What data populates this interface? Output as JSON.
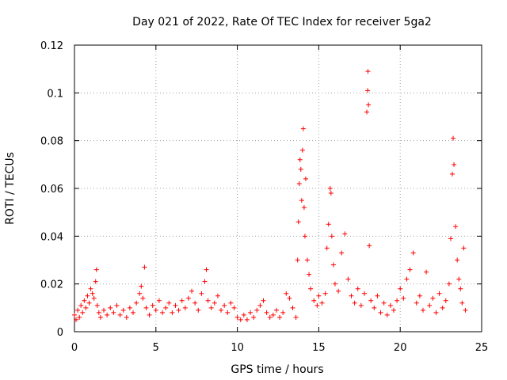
{
  "chart_data": {
    "type": "scatter",
    "title": "Day 021 of 2022, Rate Of TEC Index for receiver 5ga2",
    "xlabel": "GPS time / hours",
    "ylabel": "ROTI / TECUs",
    "xlim": [
      0,
      25
    ],
    "ylim": [
      0,
      0.12
    ],
    "xticks": [
      0,
      5,
      10,
      15,
      20,
      25
    ],
    "xtick_labels": [
      "0",
      "5",
      "10",
      "15",
      "20",
      "25"
    ],
    "yticks": [
      0,
      0.02,
      0.04,
      0.06,
      0.08,
      0.1,
      0.12
    ],
    "ytick_labels": [
      "0",
      "0.02",
      "0.04",
      "0.06",
      "0.08",
      "0.1",
      "0.12"
    ],
    "grid": true,
    "marker": "+",
    "color": "#ff0000",
    "series": [
      {
        "name": "ROTI",
        "points": [
          [
            0.0,
            0.007
          ],
          [
            0.1,
            0.005
          ],
          [
            0.2,
            0.009
          ],
          [
            0.3,
            0.006
          ],
          [
            0.4,
            0.011
          ],
          [
            0.5,
            0.008
          ],
          [
            0.6,
            0.013
          ],
          [
            0.7,
            0.01
          ],
          [
            0.8,
            0.015
          ],
          [
            0.9,
            0.012
          ],
          [
            1.0,
            0.018
          ],
          [
            1.1,
            0.016
          ],
          [
            1.2,
            0.014
          ],
          [
            1.3,
            0.021
          ],
          [
            1.35,
            0.026
          ],
          [
            1.4,
            0.011
          ],
          [
            1.5,
            0.008
          ],
          [
            1.6,
            0.006
          ],
          [
            1.8,
            0.009
          ],
          [
            2.0,
            0.007
          ],
          [
            2.2,
            0.01
          ],
          [
            2.4,
            0.008
          ],
          [
            2.6,
            0.011
          ],
          [
            2.8,
            0.007
          ],
          [
            3.0,
            0.009
          ],
          [
            3.2,
            0.006
          ],
          [
            3.4,
            0.01
          ],
          [
            3.6,
            0.008
          ],
          [
            3.8,
            0.012
          ],
          [
            4.0,
            0.016
          ],
          [
            4.1,
            0.019
          ],
          [
            4.2,
            0.014
          ],
          [
            4.3,
            0.027
          ],
          [
            4.4,
            0.01
          ],
          [
            4.6,
            0.007
          ],
          [
            4.8,
            0.011
          ],
          [
            5.0,
            0.009
          ],
          [
            5.2,
            0.013
          ],
          [
            5.4,
            0.008
          ],
          [
            5.6,
            0.01
          ],
          [
            5.8,
            0.012
          ],
          [
            6.0,
            0.008
          ],
          [
            6.2,
            0.011
          ],
          [
            6.4,
            0.009
          ],
          [
            6.6,
            0.013
          ],
          [
            6.8,
            0.01
          ],
          [
            7.0,
            0.014
          ],
          [
            7.2,
            0.017
          ],
          [
            7.4,
            0.012
          ],
          [
            7.6,
            0.009
          ],
          [
            7.8,
            0.016
          ],
          [
            8.0,
            0.021
          ],
          [
            8.1,
            0.026
          ],
          [
            8.2,
            0.013
          ],
          [
            8.4,
            0.01
          ],
          [
            8.6,
            0.012
          ],
          [
            8.8,
            0.015
          ],
          [
            9.0,
            0.009
          ],
          [
            9.2,
            0.011
          ],
          [
            9.4,
            0.008
          ],
          [
            9.6,
            0.012
          ],
          [
            9.8,
            0.01
          ],
          [
            10.0,
            0.006
          ],
          [
            10.2,
            0.005
          ],
          [
            10.4,
            0.007
          ],
          [
            10.6,
            0.005
          ],
          [
            10.8,
            0.008
          ],
          [
            11.0,
            0.006
          ],
          [
            11.2,
            0.009
          ],
          [
            11.4,
            0.011
          ],
          [
            11.6,
            0.013
          ],
          [
            11.8,
            0.008
          ],
          [
            12.0,
            0.006
          ],
          [
            12.2,
            0.007
          ],
          [
            12.4,
            0.009
          ],
          [
            12.6,
            0.006
          ],
          [
            12.8,
            0.008
          ],
          [
            13.0,
            0.016
          ],
          [
            13.2,
            0.014
          ],
          [
            13.4,
            0.01
          ],
          [
            13.6,
            0.006
          ],
          [
            13.7,
            0.03
          ],
          [
            13.75,
            0.046
          ],
          [
            13.8,
            0.062
          ],
          [
            13.85,
            0.072
          ],
          [
            13.9,
            0.068
          ],
          [
            13.95,
            0.055
          ],
          [
            14.0,
            0.076
          ],
          [
            14.05,
            0.085
          ],
          [
            14.1,
            0.052
          ],
          [
            14.15,
            0.04
          ],
          [
            14.2,
            0.064
          ],
          [
            14.3,
            0.03
          ],
          [
            14.4,
            0.024
          ],
          [
            14.5,
            0.018
          ],
          [
            14.7,
            0.013
          ],
          [
            14.9,
            0.011
          ],
          [
            15.0,
            0.015
          ],
          [
            15.2,
            0.012
          ],
          [
            15.4,
            0.016
          ],
          [
            15.5,
            0.035
          ],
          [
            15.6,
            0.045
          ],
          [
            15.7,
            0.06
          ],
          [
            15.75,
            0.058
          ],
          [
            15.8,
            0.04
          ],
          [
            15.9,
            0.028
          ],
          [
            16.0,
            0.02
          ],
          [
            16.2,
            0.017
          ],
          [
            16.4,
            0.033
          ],
          [
            16.6,
            0.041
          ],
          [
            16.8,
            0.022
          ],
          [
            17.0,
            0.015
          ],
          [
            17.2,
            0.012
          ],
          [
            17.4,
            0.018
          ],
          [
            17.6,
            0.011
          ],
          [
            17.8,
            0.016
          ],
          [
            17.95,
            0.092
          ],
          [
            18.0,
            0.101
          ],
          [
            18.02,
            0.109
          ],
          [
            18.05,
            0.095
          ],
          [
            18.1,
            0.036
          ],
          [
            18.2,
            0.013
          ],
          [
            18.4,
            0.01
          ],
          [
            18.6,
            0.015
          ],
          [
            18.8,
            0.008
          ],
          [
            19.0,
            0.012
          ],
          [
            19.2,
            0.007
          ],
          [
            19.4,
            0.011
          ],
          [
            19.6,
            0.009
          ],
          [
            19.8,
            0.013
          ],
          [
            20.0,
            0.018
          ],
          [
            20.2,
            0.014
          ],
          [
            20.4,
            0.022
          ],
          [
            20.6,
            0.026
          ],
          [
            20.8,
            0.033
          ],
          [
            21.0,
            0.012
          ],
          [
            21.2,
            0.015
          ],
          [
            21.4,
            0.009
          ],
          [
            21.6,
            0.025
          ],
          [
            21.8,
            0.011
          ],
          [
            22.0,
            0.014
          ],
          [
            22.2,
            0.008
          ],
          [
            22.4,
            0.016
          ],
          [
            22.6,
            0.01
          ],
          [
            22.8,
            0.013
          ],
          [
            23.0,
            0.02
          ],
          [
            23.1,
            0.039
          ],
          [
            23.2,
            0.066
          ],
          [
            23.25,
            0.081
          ],
          [
            23.3,
            0.07
          ],
          [
            23.4,
            0.044
          ],
          [
            23.5,
            0.03
          ],
          [
            23.6,
            0.022
          ],
          [
            23.7,
            0.018
          ],
          [
            23.8,
            0.012
          ],
          [
            23.9,
            0.035
          ],
          [
            24.0,
            0.009
          ]
        ]
      }
    ]
  }
}
